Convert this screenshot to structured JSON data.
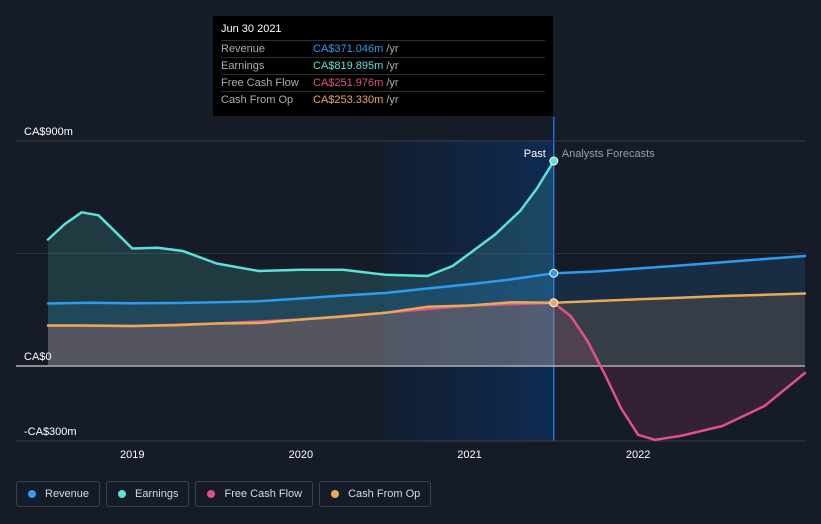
{
  "tooltip": {
    "date": "Jun 30 2021",
    "rows": [
      {
        "label": "Revenue",
        "value": "CA$371.046m",
        "unit": "/yr",
        "color": "#2d9bf0"
      },
      {
        "label": "Earnings",
        "value": "CA$819.895m",
        "unit": "/yr",
        "color": "#5ce1d6"
      },
      {
        "label": "Free Cash Flow",
        "value": "CA$251.976m",
        "unit": "/yr",
        "color": "#e0508a"
      },
      {
        "label": "Cash From Op",
        "value": "CA$253.330m",
        "unit": "/yr",
        "color": "#e8a95c"
      }
    ]
  },
  "legend": [
    {
      "label": "Revenue",
      "color": "#2d9bf0"
    },
    {
      "label": "Earnings",
      "color": "#5ce1d6"
    },
    {
      "label": "Free Cash Flow",
      "color": "#e0508a"
    },
    {
      "label": "Cash From Op",
      "color": "#e8a95c"
    }
  ],
  "chart_data": {
    "type": "area",
    "y_tick_labels": [
      {
        "value": 900,
        "label": "CA$900m"
      },
      {
        "value": 0,
        "label": "CA$0"
      },
      {
        "value": -300,
        "label": "-CA$300m"
      }
    ],
    "ylim": [
      -300,
      900
    ],
    "xlim": [
      2018.5,
      2022.99
    ],
    "x_ticks": [
      {
        "value": 2019,
        "label": "2019"
      },
      {
        "value": 2020,
        "label": "2020"
      },
      {
        "value": 2021,
        "label": "2021"
      },
      {
        "value": 2022,
        "label": "2022"
      }
    ],
    "grid": true,
    "past_label": "Past",
    "forecast_label": "Analysts Forecasts",
    "past_end": 2021.5,
    "shaded_start": 2020.5,
    "series": [
      {
        "name": "Revenue",
        "color": "#2d9bf0",
        "x": [
          2018.5,
          2018.75,
          2019.0,
          2019.25,
          2019.5,
          2019.75,
          2020.0,
          2020.25,
          2020.5,
          2020.75,
          2021.0,
          2021.25,
          2021.5,
          2021.75,
          2022.0,
          2022.25,
          2022.5,
          2022.75,
          2022.99
        ],
        "y": [
          250,
          253,
          251,
          252,
          255,
          259,
          270,
          282,
          292,
          310,
          327,
          347,
          371,
          378,
          390,
          402,
          415,
          428,
          440
        ]
      },
      {
        "name": "Earnings",
        "color": "#5ce1d6",
        "x": [
          2018.5,
          2018.6,
          2018.7,
          2018.8,
          2018.9,
          2019.0,
          2019.15,
          2019.3,
          2019.5,
          2019.75,
          2020.0,
          2020.25,
          2020.5,
          2020.75,
          2020.9,
          2021.0,
          2021.15,
          2021.3,
          2021.4,
          2021.5
        ],
        "y": [
          506,
          568,
          615,
          603,
          537,
          470,
          473,
          460,
          410,
          380,
          385,
          385,
          365,
          360,
          400,
          450,
          525,
          620,
          710,
          820
        ]
      },
      {
        "name": "Cash From Op",
        "color": "#e8a95c",
        "x": [
          2018.5,
          2018.75,
          2019.0,
          2019.25,
          2019.5,
          2019.75,
          2020.0,
          2020.25,
          2020.5,
          2020.75,
          2021.0,
          2021.25,
          2021.5,
          2021.75,
          2022.0,
          2022.25,
          2022.5,
          2022.75,
          2022.99
        ],
        "y": [
          162,
          162,
          160,
          163,
          170,
          172,
          186,
          198,
          213,
          237,
          242,
          255,
          253,
          260,
          267,
          273,
          280,
          285,
          290
        ]
      },
      {
        "name": "Free Cash Flow",
        "color": "#e0508a",
        "x": [
          2018.5,
          2019.0,
          2019.5,
          2020.0,
          2020.5,
          2021.0,
          2021.5,
          2021.6,
          2021.7,
          2021.8,
          2021.9,
          2022.0,
          2022.1,
          2022.25,
          2022.5,
          2022.75,
          2022.99
        ],
        "y": [
          162,
          160,
          170,
          186,
          213,
          242,
          252,
          200,
          100,
          -30,
          -170,
          -275,
          -295,
          -280,
          -240,
          -160,
          -28
        ]
      }
    ]
  }
}
